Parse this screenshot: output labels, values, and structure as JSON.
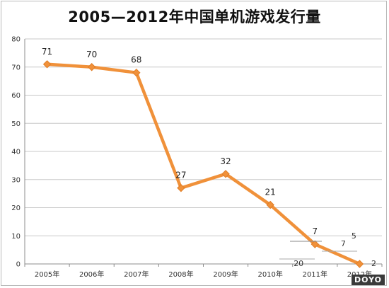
{
  "chart_data": {
    "type": "line",
    "title": "2005—2012年中国单机游戏发行量",
    "categories": [
      "2005年",
      "2006年",
      "2007年",
      "2008年",
      "2009年",
      "2010年",
      "2011年",
      "2012年"
    ],
    "series": [
      {
        "values": [
          71,
          70,
          68,
          27,
          32,
          21,
          7,
          0
        ]
      }
    ],
    "data_labels": [
      "71",
      "70",
      "68",
      "27",
      "32",
      "21",
      "7",
      ""
    ],
    "ylim": [
      0,
      80
    ],
    "yticks": [
      "0",
      "10",
      "20",
      "30",
      "40",
      "50",
      "60",
      "70",
      "80"
    ],
    "grid": true,
    "legend": "none",
    "line_color": "#f0913a",
    "overlay_labels": [
      "20",
      "5",
      "7",
      "2"
    ]
  },
  "watermark": {
    "text": "DOYO"
  }
}
